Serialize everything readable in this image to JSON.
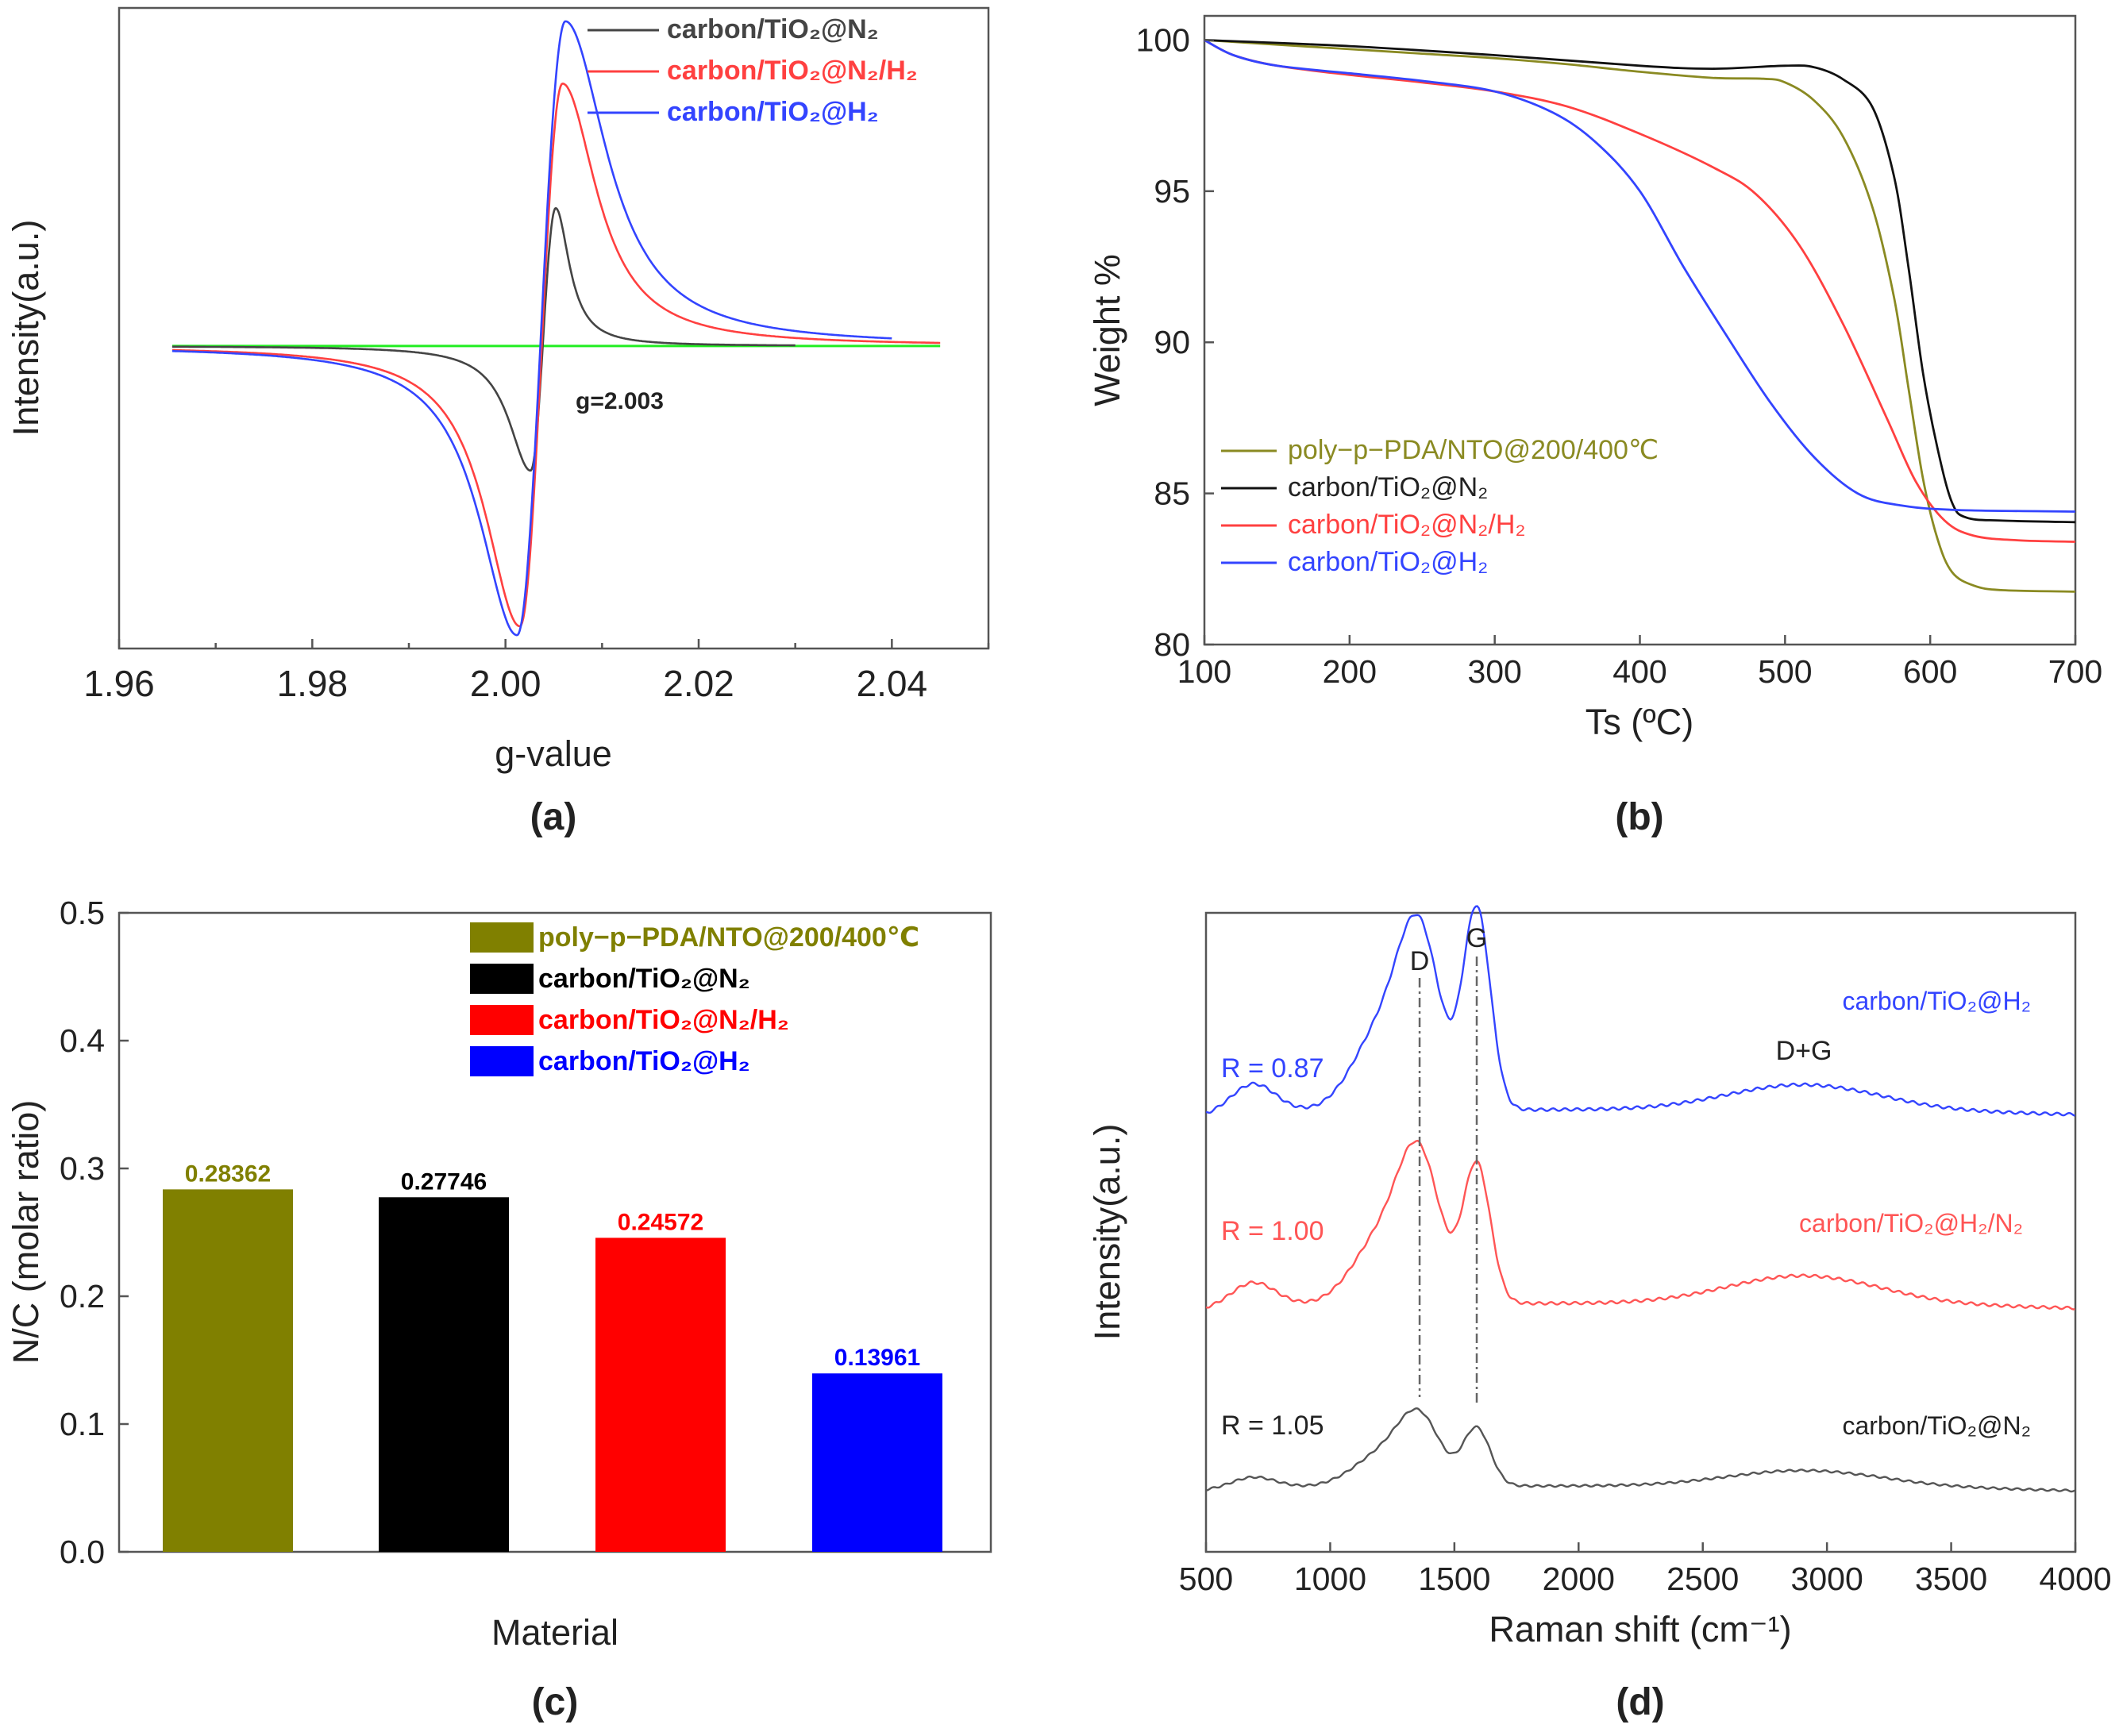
{
  "chart_data": [
    {
      "id": "a",
      "type": "line",
      "caption": "(a)",
      "xlabel": "g-value",
      "ylabel": "Intensity(a.u.)",
      "xlim": [
        1.96,
        2.05
      ],
      "ylim": [
        -3.4,
        3.8
      ],
      "xticks": [
        "1.96",
        "1.98",
        "2.00",
        "2.02",
        "2.04"
      ],
      "annotation": "g=2.003",
      "baseline_color": "#22ee22",
      "series": [
        {
          "name": "carbon/TiO₂@N₂",
          "color": "#444444",
          "x0": 1.9655,
          "x1": 2.03,
          "min": -1.4,
          "max": 1.55,
          "xmin": 2.0026,
          "xmax": 2.0052,
          "w": 0.003,
          "tail": 0.0018
        },
        {
          "name": "carbon/TiO₂@N₂/H₂",
          "color": "#ff4040",
          "x0": 1.9655,
          "x1": 2.045,
          "min": -3.15,
          "max": 2.95,
          "xmin": 2.0015,
          "xmax": 2.0059,
          "w": 0.0048,
          "tail": 0.0045
        },
        {
          "name": "carbon/TiO₂@H₂",
          "color": "#3344ff",
          "x0": 1.9655,
          "x1": 2.04,
          "min": -3.25,
          "max": 3.65,
          "xmin": 2.0012,
          "xmax": 2.0062,
          "w": 0.0052,
          "tail": 0.0055
        }
      ]
    },
    {
      "id": "b",
      "type": "line",
      "caption": "(b)",
      "xlabel": "Ts (ºC)",
      "ylabel": "Weight %",
      "xlim": [
        100,
        700
      ],
      "ylim": [
        80,
        100.8
      ],
      "xticks": [
        100,
        200,
        300,
        400,
        500,
        600,
        700
      ],
      "yticks": [
        80,
        85,
        90,
        95,
        100
      ],
      "series": [
        {
          "name": "poly−p−PDA/NTO@200/400℃",
          "color": "#8a8a22",
          "points": [
            [
              100,
              100
            ],
            [
              150,
              99.85
            ],
            [
              200,
              99.7
            ],
            [
              250,
              99.55
            ],
            [
              300,
              99.4
            ],
            [
              350,
              99.2
            ],
            [
              400,
              98.95
            ],
            [
              450,
              98.75
            ],
            [
              485,
              98.72
            ],
            [
              500,
              98.6
            ],
            [
              520,
              98.0
            ],
            [
              540,
              96.8
            ],
            [
              560,
              94.5
            ],
            [
              575,
              91.5
            ],
            [
              585,
              88.5
            ],
            [
              595,
              85.5
            ],
            [
              605,
              83.5
            ],
            [
              615,
              82.4
            ],
            [
              630,
              81.95
            ],
            [
              650,
              81.8
            ],
            [
              700,
              81.75
            ]
          ]
        },
        {
          "name": "carbon/TiO₂@N₂",
          "color": "#111111",
          "points": [
            [
              100,
              100
            ],
            [
              200,
              99.8
            ],
            [
              300,
              99.5
            ],
            [
              400,
              99.15
            ],
            [
              450,
              99.05
            ],
            [
              500,
              99.15
            ],
            [
              520,
              99.1
            ],
            [
              540,
              98.7
            ],
            [
              560,
              97.8
            ],
            [
              575,
              95.5
            ],
            [
              585,
              92.5
            ],
            [
              595,
              89
            ],
            [
              605,
              86.5
            ],
            [
              615,
              84.7
            ],
            [
              625,
              84.2
            ],
            [
              650,
              84.1
            ],
            [
              700,
              84.05
            ]
          ]
        },
        {
          "name": "carbon/TiO₂@N₂/H₂",
          "color": "#ff4040",
          "points": [
            [
              100,
              100
            ],
            [
              120,
              99.5
            ],
            [
              150,
              99.15
            ],
            [
              200,
              98.85
            ],
            [
              250,
              98.6
            ],
            [
              300,
              98.3
            ],
            [
              350,
              97.8
            ],
            [
              400,
              96.9
            ],
            [
              450,
              95.8
            ],
            [
              480,
              94.9
            ],
            [
              510,
              93.2
            ],
            [
              540,
              90.6
            ],
            [
              570,
              87.5
            ],
            [
              590,
              85.4
            ],
            [
              610,
              84.1
            ],
            [
              630,
              83.6
            ],
            [
              660,
              83.45
            ],
            [
              700,
              83.4
            ]
          ]
        },
        {
          "name": "carbon/TiO₂@H₂",
          "color": "#3344ff",
          "points": [
            [
              100,
              100
            ],
            [
              120,
              99.5
            ],
            [
              150,
              99.15
            ],
            [
              200,
              98.9
            ],
            [
              250,
              98.65
            ],
            [
              300,
              98.3
            ],
            [
              340,
              97.6
            ],
            [
              370,
              96.6
            ],
            [
              400,
              95.0
            ],
            [
              430,
              92.5
            ],
            [
              460,
              90.2
            ],
            [
              490,
              88.0
            ],
            [
              520,
              86.2
            ],
            [
              550,
              85.0
            ],
            [
              580,
              84.6
            ],
            [
              620,
              84.45
            ],
            [
              700,
              84.4
            ]
          ]
        }
      ]
    },
    {
      "id": "c",
      "type": "bar",
      "caption": "(c)",
      "xlabel": "Material",
      "ylabel": "N/C (molar ratio)",
      "ylim": [
        0.0,
        0.5
      ],
      "yticks": [
        "0.0",
        "0.1",
        "0.2",
        "0.3",
        "0.4",
        "0.5"
      ],
      "categories": [
        "poly−p−PDA/NTO@200/400℃",
        "carbon/TiO₂@N₂",
        "carbon/TiO₂@N₂/H₂",
        "carbon/TiO₂@H₂"
      ],
      "values": [
        0.28362,
        0.27746,
        0.24572,
        0.13961
      ],
      "value_labels": [
        "0.28362",
        "0.27746",
        "0.24572",
        "0.13961"
      ],
      "colors": [
        "#808000",
        "#000000",
        "#ff0000",
        "#0000ff"
      ],
      "label_colors": [
        "#808000",
        "#000000",
        "#ff0000",
        "#0000ff"
      ]
    },
    {
      "id": "d",
      "type": "line",
      "caption": "(d)",
      "xlabel": "Raman shift (cm⁻¹)",
      "ylabel": "Intensity(a.u.)",
      "xlim": [
        500,
        4000
      ],
      "xticks": [
        500,
        1000,
        1500,
        2000,
        2500,
        3000,
        3500,
        4000
      ],
      "peak_labels": [
        "D",
        "G",
        "D+G"
      ],
      "D_position": 1360,
      "G_position": 1590,
      "series": [
        {
          "name": "carbon/TiO₂@H₂",
          "ratio": "R = 0.87",
          "color": "#3344ff",
          "offset": 2.0,
          "D": 1.0,
          "G": 1.2,
          "DG": 0.15
        },
        {
          "name": "carbon/TiO₂@H₂/N₂",
          "ratio": "R = 1.00",
          "color": "#ff5555",
          "offset": 1.0,
          "D": 0.85,
          "G": 0.85,
          "DG": 0.17
        },
        {
          "name": "carbon/TiO₂@N₂",
          "ratio": "R = 1.05",
          "color": "#555555",
          "offset": 0.0,
          "D": 0.55,
          "G": 0.48,
          "DG": 0.13
        }
      ]
    }
  ]
}
